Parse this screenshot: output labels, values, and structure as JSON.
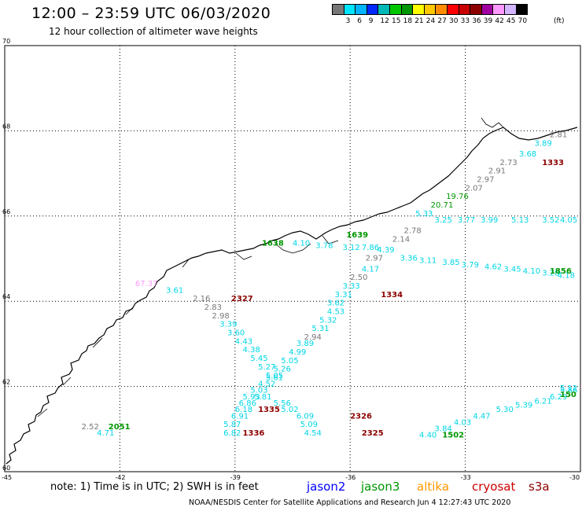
{
  "title": "12:00 – 23:59 UTC 06/03/2020",
  "subtitle": "12 hour collection of altimeter wave heights",
  "colorbar": {
    "colors": [
      "#777777",
      "#00e5ff",
      "#00b4ff",
      "#0028ff",
      "#00b9b4",
      "#00c800",
      "#009600",
      "#ffff00",
      "#ffc800",
      "#ff8c00",
      "#ff0000",
      "#c80000",
      "#8c0000",
      "#a000a0",
      "#ff99ff",
      "#d2b4ff",
      "#000000"
    ],
    "labels": [
      "3",
      "6",
      "9",
      "12",
      "15",
      "18",
      "21",
      "24",
      "27",
      "30",
      "33",
      "36",
      "39",
      "42",
      "45",
      "70"
    ],
    "unit": "(ft)"
  },
  "axes": {
    "lon_ticks": [
      "-45",
      "-42",
      "-39",
      "-36",
      "-33",
      "-30"
    ],
    "lat_ticks": [
      "70",
      "68",
      "66",
      "64",
      "62",
      "60"
    ],
    "lon_range": [
      -45,
      -30
    ],
    "lat_range": [
      60,
      70
    ]
  },
  "track_labels": [
    {
      "t": "2.81",
      "lon": -30.8,
      "lat": 67.85,
      "c": "#777777"
    },
    {
      "t": "3.89",
      "lon": -31.2,
      "lat": 67.65,
      "c": "#00d6e6"
    },
    {
      "t": "3.68",
      "lon": -31.6,
      "lat": 67.4,
      "c": "#00d6e6"
    },
    {
      "t": "2.73",
      "lon": -32.1,
      "lat": 67.2,
      "c": "#777777"
    },
    {
      "t": "1333",
      "lon": -31.0,
      "lat": 67.2,
      "c": "#8c0000",
      "b": true
    },
    {
      "t": "2.91",
      "lon": -32.4,
      "lat": 67.0,
      "c": "#777777"
    },
    {
      "t": "2.97",
      "lon": -32.7,
      "lat": 66.8,
      "c": "#777777"
    },
    {
      "t": "2.07",
      "lon": -33.0,
      "lat": 66.6,
      "c": "#777777"
    },
    {
      "t": "19.76",
      "lon": -33.5,
      "lat": 66.4,
      "c": "#009600"
    },
    {
      "t": "20.71",
      "lon": -33.9,
      "lat": 66.2,
      "c": "#009600"
    },
    {
      "t": "5.33",
      "lon": -34.3,
      "lat": 66.0,
      "c": "#00d6e6"
    },
    {
      "t": "2.78",
      "lon": -34.6,
      "lat": 65.6,
      "c": "#777777"
    },
    {
      "t": "2.14",
      "lon": -34.9,
      "lat": 65.4,
      "c": "#777777"
    },
    {
      "t": "4.39",
      "lon": -35.3,
      "lat": 65.15,
      "c": "#00d6e6"
    },
    {
      "t": "2.97",
      "lon": -35.6,
      "lat": 64.95,
      "c": "#777777"
    },
    {
      "t": "4.17",
      "lon": -35.7,
      "lat": 64.7,
      "c": "#00d6e6"
    },
    {
      "t": "2.50",
      "lon": -36.0,
      "lat": 64.5,
      "c": "#777777"
    },
    {
      "t": "3.33",
      "lon": -36.2,
      "lat": 64.3,
      "c": "#00d6e6"
    },
    {
      "t": "1334",
      "lon": -35.2,
      "lat": 64.1,
      "c": "#8c0000",
      "b": true
    },
    {
      "t": "3.31",
      "lon": -36.4,
      "lat": 64.1,
      "c": "#00d6e6"
    },
    {
      "t": "3.62",
      "lon": -36.6,
      "lat": 63.9,
      "c": "#00d6e6"
    },
    {
      "t": "4.53",
      "lon": -36.6,
      "lat": 63.7,
      "c": "#00d6e6"
    },
    {
      "t": "5.32",
      "lon": -36.8,
      "lat": 63.5,
      "c": "#00d6e6"
    },
    {
      "t": "5.31",
      "lon": -37.0,
      "lat": 63.3,
      "c": "#00d6e6"
    },
    {
      "t": "2.94",
      "lon": -37.2,
      "lat": 63.1,
      "c": "#777777"
    },
    {
      "t": "3.89",
      "lon": -37.4,
      "lat": 62.95,
      "c": "#00d6e6"
    },
    {
      "t": "4.99",
      "lon": -37.6,
      "lat": 62.75,
      "c": "#00d6e6"
    },
    {
      "t": "5.05",
      "lon": -37.8,
      "lat": 62.55,
      "c": "#00d6e6"
    },
    {
      "t": "5.26",
      "lon": -38.0,
      "lat": 62.35,
      "c": "#00d6e6"
    },
    {
      "t": "5.61",
      "lon": -38.2,
      "lat": 62.15,
      "c": "#00d6e6"
    },
    {
      "t": "4.52",
      "lon": -38.4,
      "lat": 62.0,
      "c": "#00d6e6"
    },
    {
      "t": "5.03",
      "lon": -38.6,
      "lat": 61.85,
      "c": "#00d6e6"
    },
    {
      "t": "5.81",
      "lon": -38.5,
      "lat": 61.7,
      "c": "#00d6e6"
    },
    {
      "t": "5.56",
      "lon": -38.0,
      "lat": 61.55,
      "c": "#00d6e6"
    },
    {
      "t": "5.02",
      "lon": -37.8,
      "lat": 61.4,
      "c": "#00d6e6"
    },
    {
      "t": "6.09",
      "lon": -37.4,
      "lat": 61.25,
      "c": "#00d6e6"
    },
    {
      "t": "5.09",
      "lon": -37.3,
      "lat": 61.05,
      "c": "#00d6e6"
    },
    {
      "t": "4.54",
      "lon": -37.2,
      "lat": 60.85,
      "c": "#00d6e6"
    },
    {
      "t": "2326",
      "lon": -36.0,
      "lat": 61.25,
      "c": "#8c0000",
      "b": true
    },
    {
      "t": "2325",
      "lon": -35.7,
      "lat": 60.85,
      "c": "#8c0000",
      "b": true
    },
    {
      "t": "2.16",
      "lon": -40.1,
      "lat": 64.0,
      "c": "#777777"
    },
    {
      "t": "2327",
      "lon": -39.1,
      "lat": 64.0,
      "c": "#8c0000",
      "b": true
    },
    {
      "t": "2.83",
      "lon": -39.8,
      "lat": 63.8,
      "c": "#777777"
    },
    {
      "t": "2.98",
      "lon": -39.6,
      "lat": 63.6,
      "c": "#777777"
    },
    {
      "t": "3.39",
      "lon": -39.4,
      "lat": 63.4,
      "c": "#00d6e6"
    },
    {
      "t": "3.60",
      "lon": -39.2,
      "lat": 63.2,
      "c": "#00d6e6"
    },
    {
      "t": "4.43",
      "lon": -39.0,
      "lat": 63.0,
      "c": "#00d6e6"
    },
    {
      "t": "4.38",
      "lon": -38.8,
      "lat": 62.8,
      "c": "#00d6e6"
    },
    {
      "t": "5.45",
      "lon": -38.6,
      "lat": 62.6,
      "c": "#00d6e6"
    },
    {
      "t": "5.27",
      "lon": -38.4,
      "lat": 62.4,
      "c": "#00d6e6"
    },
    {
      "t": "5.05",
      "lon": -38.2,
      "lat": 62.2,
      "c": "#00d6e6"
    },
    {
      "t": "5.93",
      "lon": -38.8,
      "lat": 61.7,
      "c": "#00d6e6"
    },
    {
      "t": "6.86",
      "lon": -38.9,
      "lat": 61.55,
      "c": "#00d6e6"
    },
    {
      "t": "6.18",
      "lon": -39.0,
      "lat": 61.4,
      "c": "#00d6e6"
    },
    {
      "t": "1335",
      "lon": -38.4,
      "lat": 61.4,
      "c": "#8c0000",
      "b": true
    },
    {
      "t": "6.91",
      "lon": -39.1,
      "lat": 61.25,
      "c": "#00d6e6"
    },
    {
      "t": "5.87",
      "lon": -39.3,
      "lat": 61.05,
      "c": "#00d6e6"
    },
    {
      "t": "6.82",
      "lon": -39.3,
      "lat": 60.85,
      "c": "#00d6e6"
    },
    {
      "t": "1336",
      "lon": -38.8,
      "lat": 60.85,
      "c": "#8c0000",
      "b": true
    },
    {
      "t": "67.37",
      "lon": -41.6,
      "lat": 64.35,
      "c": "#ff99ff"
    },
    {
      "t": "3.61",
      "lon": -40.8,
      "lat": 64.2,
      "c": "#00d6e6"
    },
    {
      "t": "2.52",
      "lon": -43.0,
      "lat": 61.0,
      "c": "#777777"
    },
    {
      "t": "4.71",
      "lon": -42.6,
      "lat": 60.85,
      "c": "#00d6e6"
    },
    {
      "t": "2051",
      "lon": -42.3,
      "lat": 61.0,
      "c": "#009600",
      "b": true
    },
    {
      "t": "1639",
      "lon": -36.1,
      "lat": 65.5,
      "c": "#009600",
      "b": true
    },
    {
      "t": "1638",
      "lon": -38.3,
      "lat": 65.3,
      "c": "#009600",
      "b": true
    },
    {
      "t": "4.10",
      "lon": -37.5,
      "lat": 65.3,
      "c": "#00d6e6"
    },
    {
      "t": "3.78",
      "lon": -36.9,
      "lat": 65.25,
      "c": "#00d6e6"
    },
    {
      "t": "3.12",
      "lon": -36.2,
      "lat": 65.2,
      "c": "#00d6e6"
    },
    {
      "t": "7.86",
      "lon": -35.7,
      "lat": 65.2,
      "c": "#00d6e6"
    },
    {
      "t": "3.36",
      "lon": -34.7,
      "lat": 64.95,
      "c": "#00d6e6"
    },
    {
      "t": "3.11",
      "lon": -34.2,
      "lat": 64.9,
      "c": "#00d6e6"
    },
    {
      "t": "3.85",
      "lon": -33.6,
      "lat": 64.85,
      "c": "#00d6e6"
    },
    {
      "t": "3.79",
      "lon": -33.1,
      "lat": 64.8,
      "c": "#00d6e6"
    },
    {
      "t": "4.62",
      "lon": -32.5,
      "lat": 64.75,
      "c": "#00d6e6"
    },
    {
      "t": "3.45",
      "lon": -32.0,
      "lat": 64.7,
      "c": "#00d6e6"
    },
    {
      "t": "4.10",
      "lon": -31.5,
      "lat": 64.65,
      "c": "#00d6e6"
    },
    {
      "t": "3.28",
      "lon": -31.0,
      "lat": 64.6,
      "c": "#00d6e6"
    },
    {
      "t": "4.18",
      "lon": -30.6,
      "lat": 64.55,
      "c": "#00d6e6"
    },
    {
      "t": "1856",
      "lon": -30.8,
      "lat": 64.65,
      "c": "#009600",
      "b": true
    },
    {
      "t": "3.25",
      "lon": -33.8,
      "lat": 65.85,
      "c": "#00d6e6"
    },
    {
      "t": "3.77",
      "lon": -33.2,
      "lat": 65.85,
      "c": "#00d6e6"
    },
    {
      "t": "3.99",
      "lon": -32.6,
      "lat": 65.85,
      "c": "#00d6e6"
    },
    {
      "t": "5.13",
      "lon": -31.8,
      "lat": 65.85,
      "c": "#00d6e6"
    },
    {
      "t": "3.52",
      "lon": -31.0,
      "lat": 65.85,
      "c": "#00d6e6"
    },
    {
      "t": "4.05",
      "lon": -30.3,
      "lat": 65.85,
      "c": "#00d6e6"
    },
    {
      "t": "4.40",
      "lon": -34.2,
      "lat": 60.8,
      "c": "#00d6e6"
    },
    {
      "t": "3.84",
      "lon": -33.8,
      "lat": 60.95,
      "c": "#00d6e6"
    },
    {
      "t": "4.03",
      "lon": -33.3,
      "lat": 61.1,
      "c": "#00d6e6"
    },
    {
      "t": "4.47",
      "lon": -32.8,
      "lat": 61.25,
      "c": "#00d6e6"
    },
    {
      "t": "5.30",
      "lon": -32.2,
      "lat": 61.4,
      "c": "#00d6e6"
    },
    {
      "t": "5.39",
      "lon": -31.7,
      "lat": 61.5,
      "c": "#00d6e6"
    },
    {
      "t": "6.21",
      "lon": -31.2,
      "lat": 61.6,
      "c": "#00d6e6"
    },
    {
      "t": "6.29",
      "lon": -30.8,
      "lat": 61.7,
      "c": "#00d6e6"
    },
    {
      "t": "5.86",
      "lon": -30.4,
      "lat": 61.85,
      "c": "#00d6e6"
    },
    {
      "t": "5.12",
      "lon": -30.1,
      "lat": 61.9,
      "c": "#00d6e6"
    },
    {
      "t": "1502",
      "lon": -33.6,
      "lat": 60.8,
      "c": "#009600",
      "b": true
    },
    {
      "t": "150",
      "lon": -30.1,
      "lat": 61.75,
      "c": "#009600",
      "b": true
    }
  ],
  "footnote": "note:  1) Time is in UTC;  2) SWH is in feet",
  "legend": [
    {
      "label": "jason2",
      "color": "#0000ff"
    },
    {
      "label": "jason3",
      "color": "#009600"
    },
    {
      "label": "altika",
      "color": "#ff9900"
    },
    {
      "label": "cryosat",
      "color": "#cc0000"
    },
    {
      "label": "s3a",
      "color": "#8c0000"
    }
  ],
  "credit": "NOAA/NESDIS Center for Satellite Applications and Research    Jun  4 12:27:43 UTC 2020"
}
